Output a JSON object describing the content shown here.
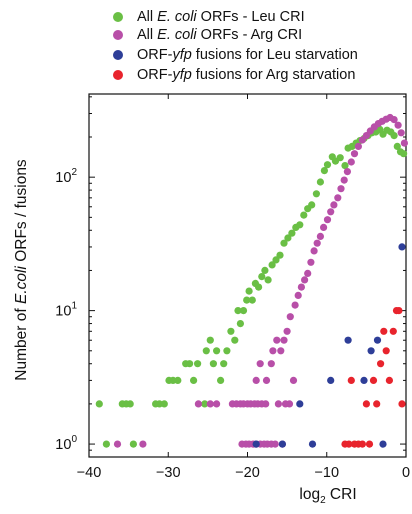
{
  "chart_data": {
    "type": "scatter",
    "title": "",
    "xlabel": {
      "prefix": "log",
      "subscript": "2",
      "suffix": " CRI"
    },
    "ylabel": {
      "pre": "Number of ",
      "italic": "E.coli",
      "post": " ORFs / fusions"
    },
    "xlim": [
      -40,
      0
    ],
    "ylim": [
      0.8,
      420
    ],
    "yscale": "log",
    "xticks": [
      -40,
      -30,
      -20,
      -10,
      0
    ],
    "xtick_labels": [
      "−40",
      "−30",
      "−20",
      "−10",
      "0"
    ],
    "yticks": [
      1,
      10,
      100
    ],
    "ytick_labels": [
      {
        "base": "10",
        "exp": "0"
      },
      {
        "base": "10",
        "exp": "1"
      },
      {
        "base": "10",
        "exp": "2"
      }
    ],
    "grid": false,
    "legend_position": "top",
    "series": [
      {
        "name": "All E. coli ORFs - Leu CRI",
        "legend": {
          "pre": "All ",
          "italic": "E. coli",
          "post": " ORFs - Leu CRI"
        },
        "color": "#6abf45",
        "points": [
          [
            -38.7,
            2
          ],
          [
            -37.8,
            1
          ],
          [
            -35.8,
            2
          ],
          [
            -35.3,
            2
          ],
          [
            -34.8,
            2
          ],
          [
            -34.4,
            1
          ],
          [
            -31.6,
            2
          ],
          [
            -31.1,
            2
          ],
          [
            -30.5,
            2
          ],
          [
            -29.9,
            3
          ],
          [
            -29.4,
            3
          ],
          [
            -28.8,
            3
          ],
          [
            -27.8,
            4
          ],
          [
            -27.3,
            4
          ],
          [
            -26.8,
            3
          ],
          [
            -26.3,
            4
          ],
          [
            -25.4,
            2
          ],
          [
            -25.2,
            5
          ],
          [
            -24.7,
            6
          ],
          [
            -24.3,
            4
          ],
          [
            -23.9,
            5
          ],
          [
            -23.4,
            3
          ],
          [
            -23.0,
            4
          ],
          [
            -22.6,
            5
          ],
          [
            -22.1,
            7
          ],
          [
            -21.6,
            6
          ],
          [
            -21.2,
            10
          ],
          [
            -20.9,
            8
          ],
          [
            -20.5,
            10
          ],
          [
            -20.1,
            12
          ],
          [
            -19.8,
            14
          ],
          [
            -19.4,
            12
          ],
          [
            -19.0,
            16
          ],
          [
            -18.6,
            15
          ],
          [
            -18.2,
            18
          ],
          [
            -17.8,
            20
          ],
          [
            -17.4,
            17
          ],
          [
            -16.9,
            22
          ],
          [
            -16.4,
            24
          ],
          [
            -15.9,
            26
          ],
          [
            -15.4,
            32
          ],
          [
            -14.9,
            35
          ],
          [
            -14.4,
            38
          ],
          [
            -13.9,
            42
          ],
          [
            -13.4,
            44
          ],
          [
            -12.9,
            52
          ],
          [
            -12.4,
            58
          ],
          [
            -11.9,
            62
          ],
          [
            -11.3,
            75
          ],
          [
            -10.8,
            92
          ],
          [
            -10.3,
            112
          ],
          [
            -9.9,
            124
          ],
          [
            -9.3,
            142
          ],
          [
            -8.9,
            132
          ],
          [
            -8.3,
            140
          ],
          [
            -7.7,
            122
          ],
          [
            -7.3,
            165
          ],
          [
            -6.8,
            170
          ],
          [
            -6.3,
            180
          ],
          [
            -5.8,
            188
          ],
          [
            -5.3,
            195
          ],
          [
            -4.8,
            205
          ],
          [
            -4.3,
            215
          ],
          [
            -3.8,
            218
          ],
          [
            -3.3,
            228
          ],
          [
            -2.9,
            210
          ],
          [
            -2.4,
            225
          ],
          [
            -1.9,
            218
          ],
          [
            -1.5,
            205
          ],
          [
            -1.1,
            170
          ],
          [
            -0.7,
            155
          ],
          [
            -0.3,
            150
          ]
        ]
      },
      {
        "name": "All E. coli ORFs - Arg CRI",
        "legend": {
          "pre": "All ",
          "italic": "E. coli",
          "post": " ORFs - Arg CRI"
        },
        "color": "#b84fa8",
        "points": [
          [
            -36.4,
            1
          ],
          [
            -33.2,
            1
          ],
          [
            -26.2,
            2
          ],
          [
            -24.7,
            2
          ],
          [
            -23.9,
            2
          ],
          [
            -21.9,
            2
          ],
          [
            -21.4,
            2
          ],
          [
            -20.9,
            2
          ],
          [
            -20.5,
            2
          ],
          [
            -20.0,
            2
          ],
          [
            -19.6,
            2
          ],
          [
            -19.1,
            2
          ],
          [
            -18.7,
            2
          ],
          [
            -18.2,
            2
          ],
          [
            -17.7,
            2
          ],
          [
            -20.7,
            1
          ],
          [
            -20.2,
            1
          ],
          [
            -19.8,
            1
          ],
          [
            -19.3,
            1
          ],
          [
            -18.9,
            1
          ],
          [
            -18.4,
            1
          ],
          [
            -17.9,
            1
          ],
          [
            -17.5,
            1
          ],
          [
            -17.0,
            1
          ],
          [
            -16.5,
            1
          ],
          [
            -16.1,
            2
          ],
          [
            -15.6,
            1
          ],
          [
            -15.2,
            2
          ],
          [
            -14.7,
            2
          ],
          [
            -14.2,
            3
          ],
          [
            -18.9,
            3
          ],
          [
            -18.4,
            4
          ],
          [
            -17.6,
            3
          ],
          [
            -17.0,
            4
          ],
          [
            -16.8,
            5
          ],
          [
            -16.3,
            6
          ],
          [
            -15.8,
            5
          ],
          [
            -15.4,
            6
          ],
          [
            -15.0,
            7
          ],
          [
            -14.6,
            9
          ],
          [
            -14.0,
            11
          ],
          [
            -13.6,
            13
          ],
          [
            -13.2,
            15
          ],
          [
            -12.8,
            17
          ],
          [
            -12.4,
            19
          ],
          [
            -12.0,
            23
          ],
          [
            -11.6,
            28
          ],
          [
            -11.2,
            32
          ],
          [
            -10.8,
            36
          ],
          [
            -10.4,
            42
          ],
          [
            -9.9,
            48
          ],
          [
            -9.5,
            55
          ],
          [
            -9.1,
            62
          ],
          [
            -8.6,
            70
          ],
          [
            -8.2,
            82
          ],
          [
            -7.8,
            95
          ],
          [
            -7.4,
            110
          ],
          [
            -6.9,
            130
          ],
          [
            -6.5,
            150
          ],
          [
            -6.0,
            170
          ],
          [
            -5.5,
            190
          ],
          [
            -5.0,
            205
          ],
          [
            -4.5,
            222
          ],
          [
            -4.0,
            238
          ],
          [
            -3.5,
            252
          ],
          [
            -3.0,
            262
          ],
          [
            -2.5,
            272
          ],
          [
            -2.0,
            280
          ],
          [
            -1.5,
            270
          ],
          [
            -1.0,
            245
          ],
          [
            -0.6,
            215
          ],
          [
            -0.2,
            180
          ]
        ]
      },
      {
        "name": "ORF-yfp fusions for Leu starvation",
        "legend": {
          "pre": "ORF-",
          "italic": "yfp",
          "post": " fusions for Leu starvation"
        },
        "color": "#2e3e98",
        "points": [
          [
            -18.9,
            1
          ],
          [
            -15.6,
            1
          ],
          [
            -13.4,
            2
          ],
          [
            -11.8,
            1
          ],
          [
            -9.5,
            3
          ],
          [
            -7.3,
            6
          ],
          [
            -5.3,
            3
          ],
          [
            -4.4,
            5
          ],
          [
            -3.6,
            6
          ],
          [
            -2.9,
            1
          ],
          [
            -0.5,
            30
          ]
        ]
      },
      {
        "name": "ORF-yfp fusions for Arg starvation",
        "legend": {
          "pre": "ORF-",
          "italic": "yfp",
          "post": " fusions for Arg starvation"
        },
        "color": "#e8242d",
        "points": [
          [
            -7.7,
            1
          ],
          [
            -7.2,
            1
          ],
          [
            -6.9,
            3
          ],
          [
            -6.5,
            1
          ],
          [
            -6.0,
            1
          ],
          [
            -5.5,
            1
          ],
          [
            -5.0,
            2
          ],
          [
            -4.6,
            1
          ],
          [
            -4.1,
            3
          ],
          [
            -3.7,
            2
          ],
          [
            -3.2,
            4
          ],
          [
            -2.8,
            7
          ],
          [
            -2.5,
            5
          ],
          [
            -2.1,
            3
          ],
          [
            -1.6,
            7
          ],
          [
            -1.2,
            10
          ],
          [
            -0.9,
            10
          ],
          [
            -0.5,
            2
          ]
        ]
      }
    ]
  }
}
